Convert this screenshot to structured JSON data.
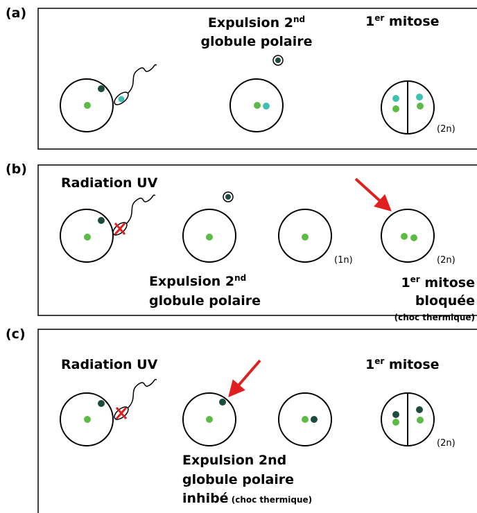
{
  "panels": [
    {
      "label": "(a)",
      "expulsion": {
        "main": "Expulsion 2",
        "sup": "nd",
        "line2": "globule polaire"
      },
      "mitose": {
        "num": "1",
        "sup": "er",
        "rest": " mitose"
      },
      "ploidy": [
        "(2n)"
      ]
    },
    {
      "label": "(b)",
      "radiation": "Radiation UV",
      "expulsion": {
        "main": "Expulsion 2",
        "sup": "nd",
        "line2": "globule polaire"
      },
      "ploidy": [
        "(1n)",
        "(2n)"
      ],
      "mitose": {
        "num": "1",
        "sup": "er",
        "rest": " mitose",
        "line2": "bloquée",
        "line3": "(choc thermique)"
      }
    },
    {
      "label": "(c)",
      "radiation": "Radiation UV",
      "mitose": {
        "num": "1",
        "sup": "er",
        "rest": " mitose"
      },
      "ploidy": [
        "(2n)"
      ],
      "expulsion": {
        "line1": "Expulsion 2nd",
        "line2": "globule polaire",
        "line3": "inhibé",
        "note": " (choc thermique)"
      }
    }
  ]
}
